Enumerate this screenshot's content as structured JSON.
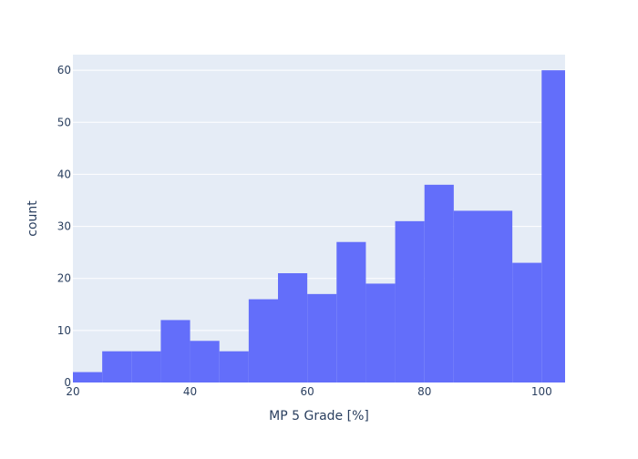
{
  "chart_data": {
    "type": "bar",
    "subtype": "histogram",
    "xlabel": "MP 5 Grade [%]",
    "ylabel": "count",
    "xlim": [
      20,
      104
    ],
    "ylim": [
      0,
      63
    ],
    "x_ticks": [
      20,
      40,
      60,
      80,
      100
    ],
    "y_ticks": [
      0,
      10,
      20,
      30,
      40,
      50,
      60
    ],
    "bins": [
      {
        "x0": 20,
        "x1": 25,
        "count": 2
      },
      {
        "x0": 25,
        "x1": 30,
        "count": 6
      },
      {
        "x0": 30,
        "x1": 35,
        "count": 6
      },
      {
        "x0": 35,
        "x1": 40,
        "count": 12
      },
      {
        "x0": 40,
        "x1": 45,
        "count": 8
      },
      {
        "x0": 45,
        "x1": 50,
        "count": 6
      },
      {
        "x0": 50,
        "x1": 55,
        "count": 16
      },
      {
        "x0": 55,
        "x1": 60,
        "count": 21
      },
      {
        "x0": 60,
        "x1": 65,
        "count": 17
      },
      {
        "x0": 65,
        "x1": 70,
        "count": 27
      },
      {
        "x0": 70,
        "x1": 75,
        "count": 19
      },
      {
        "x0": 75,
        "x1": 80,
        "count": 31
      },
      {
        "x0": 80,
        "x1": 85,
        "count": 38
      },
      {
        "x0": 85,
        "x1": 90,
        "count": 33
      },
      {
        "x0": 90,
        "x1": 95,
        "count": 33
      },
      {
        "x0": 95,
        "x1": 100,
        "count": 23
      },
      {
        "x0": 100,
        "x1": 104,
        "count": 60
      }
    ],
    "grid": true,
    "colors": {
      "bar": "#636efa",
      "plot_background": "#e5ecf6",
      "gridline": "#ffffff",
      "text": "#2a3f5f"
    }
  }
}
